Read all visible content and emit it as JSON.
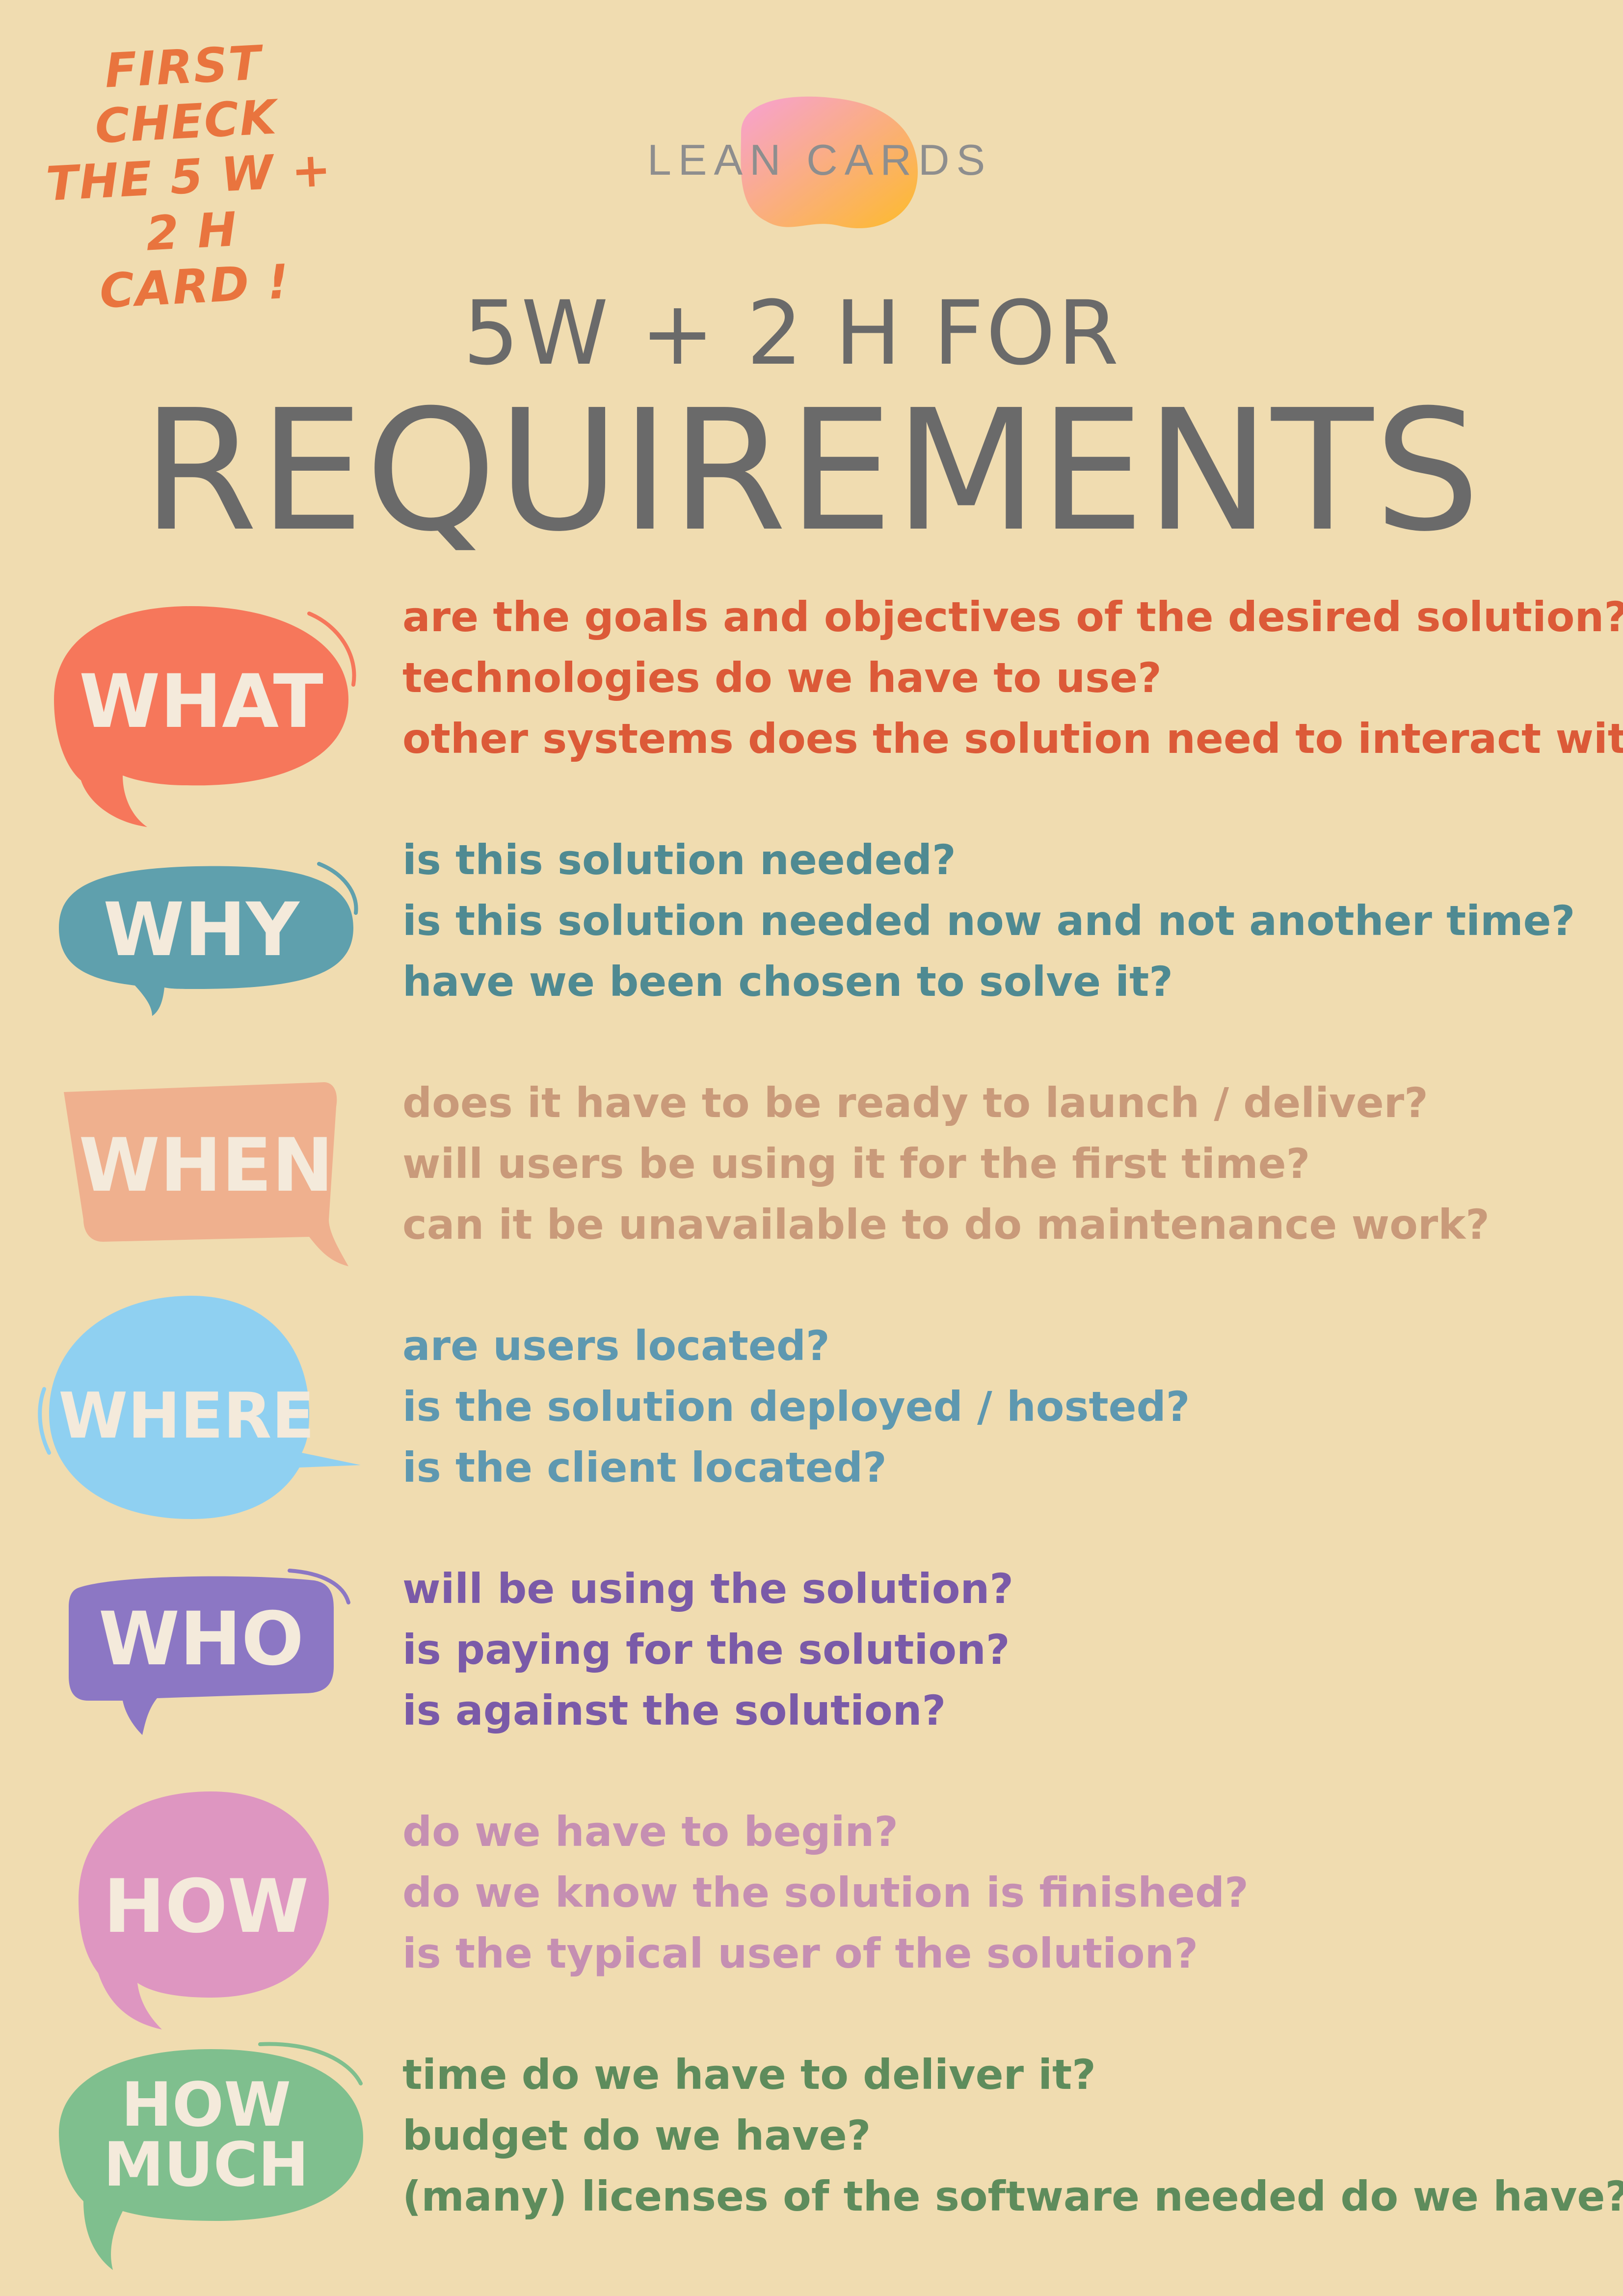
{
  "note": [
    "FIRST CHECK",
    "THE 5 W + 2 H",
    "CARD !"
  ],
  "logo": "LEAN CARDS",
  "title": {
    "line1": "5W + 2 H FOR",
    "line2": "REQUIREMENTS"
  },
  "colors": {
    "background": "#f0dcb0",
    "what": "#f6775b",
    "what_text": "#dc5a38",
    "why": "#5fa0ad",
    "why_text": "#4f8a92",
    "when": "#efb08e",
    "when_text": "#c99a7a",
    "where": "#8fd0f1",
    "where_text": "#5e98b0",
    "who": "#8c77c4",
    "who_text": "#7a5aa8",
    "how": "#de96c1",
    "how_text": "#c58fb2",
    "howmuch": "#7fbf8e",
    "howmuch_text": "#5e8c5c"
  },
  "sections": [
    {
      "label": "WHAT",
      "lines": [
        "are the goals and objectives of the desired solution?",
        "technologies do we have to use?",
        "other systems does the solution need to interact with?"
      ]
    },
    {
      "label": "WHY",
      "lines": [
        "is this solution needed?",
        "is this solution needed now and not another time?",
        "have we been chosen to solve it?"
      ]
    },
    {
      "label": "WHEN",
      "lines": [
        "does it have to be ready to launch / deliver?",
        "will users be using it for the first time?",
        "can it be unavailable to do maintenance work?"
      ]
    },
    {
      "label": "WHERE",
      "lines": [
        "are users located?",
        "is the solution deployed / hosted?",
        "is the client located?"
      ]
    },
    {
      "label": "WHO",
      "lines": [
        "will be using the solution?",
        "is paying for the solution?",
        "is against the solution?"
      ]
    },
    {
      "label": "HOW",
      "lines": [
        "do we have to begin?",
        "do we know the solution is finished?",
        "is the typical user of the solution?"
      ]
    },
    {
      "label": "HOW\nMUCH",
      "lines": [
        "time do we have to deliver it?",
        "budget do we have?",
        "(many) licenses of the software needed do we have?"
      ]
    }
  ]
}
